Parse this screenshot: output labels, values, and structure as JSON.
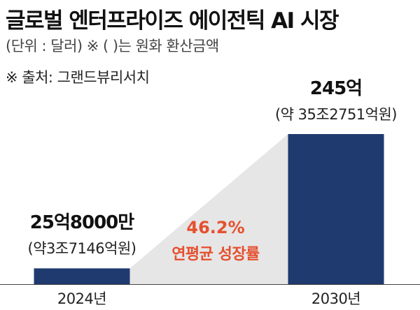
{
  "title": "글로벌 엔터프라이즈 에이전틱 AI 시장",
  "unit_note": "(단위 : 달러) ※ (  )는 원화 환산금액",
  "source": "※ 출처: 그랜드뷰리서치",
  "colors": {
    "bar": "#1f3a6e",
    "growth_band": "#e6e6e6",
    "accent": "#e5502e",
    "axis": "#444444"
  },
  "growth": {
    "rate": "46.2%",
    "label": "연평균 성장률"
  },
  "chart_data": {
    "type": "bar",
    "categories": [
      "2024년",
      "2030년"
    ],
    "values": [
      25.8,
      245
    ],
    "value_labels": [
      "25억8000만",
      "245억"
    ],
    "value_sublabels": [
      "(약3조7146억원)",
      "(약 35조2751억원)"
    ],
    "ylim": [
      0,
      245
    ]
  }
}
